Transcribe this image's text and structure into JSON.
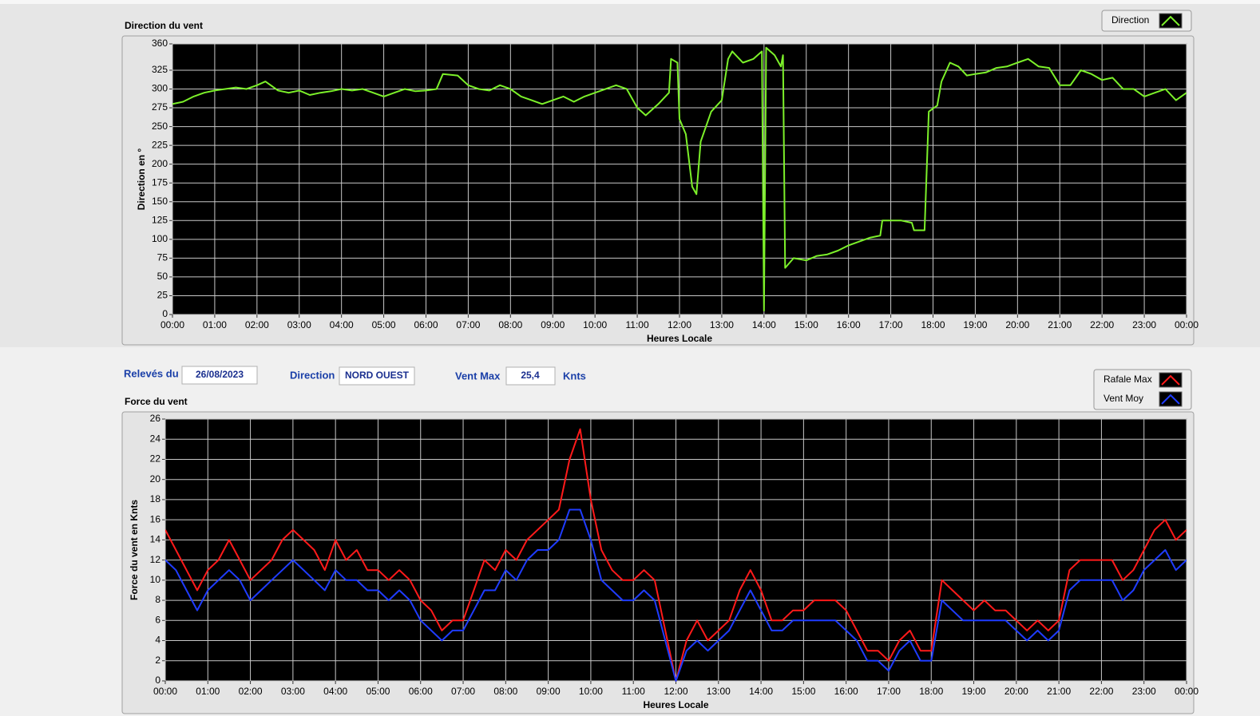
{
  "header": {
    "date_label": "Relevés du",
    "date": "26/08/2023",
    "direction_label": "Direction",
    "direction": "NORD OUEST",
    "max_label": "Vent Max",
    "max": "25,4",
    "max_unit": "Knts"
  },
  "chart_data": [
    {
      "type": "line",
      "title": "Direction du vent",
      "y_label": "Direction en °",
      "x_label": "Heures Locale",
      "legend": "top-right",
      "grid": true,
      "xlim": [
        0,
        24
      ],
      "ylim": [
        0,
        360
      ],
      "xticks": [
        {
          "value": 0,
          "label": "00:00"
        },
        {
          "value": 1,
          "label": "01:00"
        },
        {
          "value": 2,
          "label": "02:00"
        },
        {
          "value": 3,
          "label": "03:00"
        },
        {
          "value": 4,
          "label": "04:00"
        },
        {
          "value": 5,
          "label": "05:00"
        },
        {
          "value": 6,
          "label": "06:00"
        },
        {
          "value": 7,
          "label": "07:00"
        },
        {
          "value": 8,
          "label": "08:00"
        },
        {
          "value": 9,
          "label": "09:00"
        },
        {
          "value": 10,
          "label": "10:00"
        },
        {
          "value": 11,
          "label": "11:00"
        },
        {
          "value": 12,
          "label": "12:00"
        },
        {
          "value": 13,
          "label": "13:00"
        },
        {
          "value": 14,
          "label": "14:00"
        },
        {
          "value": 15,
          "label": "15:00"
        },
        {
          "value": 16,
          "label": "16:00"
        },
        {
          "value": 17,
          "label": "17:00"
        },
        {
          "value": 18,
          "label": "18:00"
        },
        {
          "value": 19,
          "label": "19:00"
        },
        {
          "value": 20,
          "label": "20:00"
        },
        {
          "value": 21,
          "label": "21:00"
        },
        {
          "value": 22,
          "label": "22:00"
        },
        {
          "value": 23,
          "label": "23:00"
        },
        {
          "value": 24,
          "label": "00:00"
        }
      ],
      "yticks": [
        0,
        25,
        50,
        75,
        100,
        125,
        150,
        175,
        200,
        225,
        250,
        275,
        300,
        325,
        360
      ],
      "x": [
        0,
        0.25,
        0.5,
        0.75,
        1,
        1.25,
        1.5,
        1.75,
        2,
        2.2,
        2.5,
        2.75,
        3,
        3.25,
        3.5,
        3.75,
        4,
        4.25,
        4.5,
        4.75,
        5,
        5.25,
        5.5,
        5.75,
        6,
        6.25,
        6.4,
        6.75,
        7,
        7.25,
        7.5,
        7.75,
        8,
        8.25,
        8.5,
        8.75,
        9,
        9.25,
        9.5,
        9.75,
        10,
        10.25,
        10.5,
        10.75,
        11,
        11.2,
        11.5,
        11.75,
        11.8,
        11.95,
        12,
        12.15,
        12.3,
        12.4,
        12.5,
        12.75,
        13,
        13.15,
        13.25,
        13.5,
        13.75,
        13.95,
        14,
        14.05,
        14.25,
        14.4,
        14.45,
        14.5,
        14.7,
        15,
        15.25,
        15.5,
        15.75,
        16,
        16.25,
        16.5,
        16.75,
        16.8,
        17.25,
        17.5,
        17.55,
        17.8,
        17.9,
        18.1,
        18.2,
        18.4,
        18.6,
        18.8,
        19,
        19.25,
        19.5,
        19.75,
        20,
        20.25,
        20.5,
        20.75,
        21,
        21.25,
        21.5,
        21.75,
        22,
        22.25,
        22.5,
        22.75,
        23,
        23.25,
        23.5,
        23.75,
        24
      ],
      "series": [
        {
          "name": "Direction",
          "color": "#7cf02a",
          "values": [
            280,
            283,
            290,
            295,
            298,
            300,
            302,
            300,
            305,
            310,
            298,
            295,
            298,
            292,
            295,
            297,
            300,
            298,
            300,
            295,
            290,
            295,
            300,
            297,
            298,
            300,
            320,
            318,
            305,
            300,
            298,
            305,
            300,
            290,
            285,
            280,
            285,
            290,
            283,
            290,
            295,
            300,
            305,
            300,
            275,
            265,
            280,
            295,
            340,
            335,
            260,
            240,
            170,
            160,
            230,
            270,
            285,
            340,
            350,
            335,
            340,
            350,
            5,
            355,
            345,
            330,
            345,
            62,
            75,
            72,
            78,
            80,
            85,
            92,
            97,
            102,
            105,
            125,
            125,
            122,
            112,
            112,
            270,
            278,
            310,
            335,
            330,
            318,
            320,
            322,
            328,
            330,
            335,
            340,
            330,
            328,
            305,
            305,
            325,
            320,
            312,
            315,
            300,
            300,
            290,
            295,
            300,
            285,
            295
          ]
        }
      ]
    },
    {
      "type": "line",
      "title": "Force du vent",
      "y_label": "Force du vent en Knts",
      "x_label": "Heures Locale",
      "legend": "top-right",
      "grid": true,
      "xlim": [
        0,
        24
      ],
      "ylim": [
        0,
        26
      ],
      "xticks": [
        {
          "value": 0,
          "label": "00:00"
        },
        {
          "value": 1,
          "label": "01:00"
        },
        {
          "value": 2,
          "label": "02:00"
        },
        {
          "value": 3,
          "label": "03:00"
        },
        {
          "value": 4,
          "label": "04:00"
        },
        {
          "value": 5,
          "label": "05:00"
        },
        {
          "value": 6,
          "label": "06:00"
        },
        {
          "value": 7,
          "label": "07:00"
        },
        {
          "value": 8,
          "label": "08:00"
        },
        {
          "value": 9,
          "label": "09:00"
        },
        {
          "value": 10,
          "label": "10:00"
        },
        {
          "value": 11,
          "label": "11:00"
        },
        {
          "value": 12,
          "label": "12:00"
        },
        {
          "value": 13,
          "label": "13:00"
        },
        {
          "value": 14,
          "label": "14:00"
        },
        {
          "value": 15,
          "label": "15:00"
        },
        {
          "value": 16,
          "label": "16:00"
        },
        {
          "value": 17,
          "label": "17:00"
        },
        {
          "value": 18,
          "label": "18:00"
        },
        {
          "value": 19,
          "label": "19:00"
        },
        {
          "value": 20,
          "label": "20:00"
        },
        {
          "value": 21,
          "label": "21:00"
        },
        {
          "value": 22,
          "label": "22:00"
        },
        {
          "value": 23,
          "label": "23:00"
        },
        {
          "value": 24,
          "label": "00:00"
        }
      ],
      "yticks": [
        0,
        2,
        4,
        6,
        8,
        10,
        12,
        14,
        16,
        18,
        20,
        22,
        24,
        26
      ],
      "x": [
        0,
        0.25,
        0.5,
        0.75,
        1,
        1.25,
        1.5,
        1.75,
        2,
        2.25,
        2.5,
        2.75,
        3,
        3.25,
        3.5,
        3.75,
        4,
        4.25,
        4.5,
        4.75,
        5,
        5.25,
        5.5,
        5.75,
        6,
        6.25,
        6.5,
        6.75,
        7,
        7.25,
        7.5,
        7.75,
        8,
        8.25,
        8.5,
        8.75,
        9,
        9.25,
        9.5,
        9.75,
        10,
        10.25,
        10.5,
        10.75,
        11,
        11.25,
        11.5,
        11.75,
        12,
        12.25,
        12.5,
        12.75,
        13,
        13.25,
        13.5,
        13.75,
        14,
        14.25,
        14.5,
        14.75,
        15,
        15.25,
        15.5,
        15.75,
        16,
        16.25,
        16.5,
        16.75,
        17,
        17.25,
        17.5,
        17.75,
        18,
        18.25,
        18.5,
        18.75,
        19,
        19.25,
        19.5,
        19.75,
        20,
        20.25,
        20.5,
        20.75,
        21,
        21.25,
        21.5,
        21.75,
        22,
        22.25,
        22.5,
        22.75,
        23,
        23.25,
        23.5,
        23.75,
        24
      ],
      "series": [
        {
          "name": "Rafale Max",
          "color": "#ff1a1a",
          "values": [
            15,
            13,
            11,
            9,
            11,
            12,
            14,
            12,
            10,
            11,
            12,
            14,
            15,
            14,
            13,
            11,
            14,
            12,
            13,
            11,
            11,
            10,
            11,
            10,
            8,
            7,
            5,
            6,
            6,
            9,
            12,
            11,
            13,
            12,
            14,
            15,
            16,
            17,
            22,
            25,
            18,
            13,
            11,
            10,
            10,
            11,
            10,
            5,
            0,
            4,
            6,
            4,
            5,
            6,
            9,
            11,
            9,
            6,
            6,
            7,
            7,
            8,
            8,
            8,
            7,
            5,
            3,
            3,
            2,
            4,
            5,
            3,
            3,
            10,
            9,
            8,
            7,
            8,
            7,
            7,
            6,
            5,
            6,
            5,
            6,
            11,
            12,
            12,
            12,
            12,
            10,
            11,
            13,
            15,
            16,
            14,
            15
          ]
        },
        {
          "name": "Vent Moy",
          "color": "#1f3cff",
          "values": [
            12,
            11,
            9,
            7,
            9,
            10,
            11,
            10,
            8,
            9,
            10,
            11,
            12,
            11,
            10,
            9,
            11,
            10,
            10,
            9,
            9,
            8,
            9,
            8,
            6,
            5,
            4,
            5,
            5,
            7,
            9,
            9,
            11,
            10,
            12,
            13,
            13,
            14,
            17,
            17,
            14,
            10,
            9,
            8,
            8,
            9,
            8,
            4,
            0,
            3,
            4,
            3,
            4,
            5,
            7,
            9,
            7,
            5,
            5,
            6,
            6,
            6,
            6,
            6,
            5,
            4,
            2,
            2,
            1,
            3,
            4,
            2,
            2,
            8,
            7,
            6,
            6,
            6,
            6,
            6,
            5,
            4,
            5,
            4,
            5,
            9,
            10,
            10,
            10,
            10,
            8,
            9,
            11,
            12,
            13,
            11,
            12
          ]
        }
      ]
    }
  ]
}
